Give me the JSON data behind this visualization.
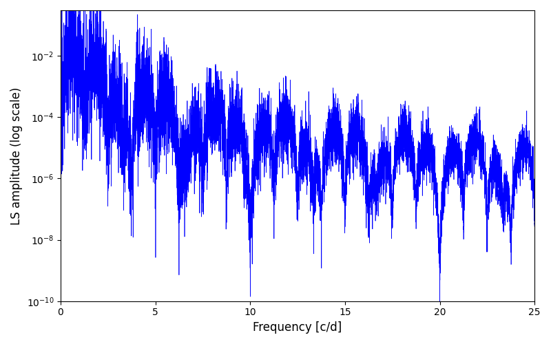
{
  "xlabel": "Frequency [c/d]",
  "ylabel": "LS amplitude (log scale)",
  "line_color": "#0000FF",
  "xlim": [
    0,
    25
  ],
  "ylim": [
    1e-10,
    0.3
  ],
  "background_color": "#ffffff",
  "line_width": 0.5,
  "figsize": [
    8.0,
    5.0
  ],
  "dpi": 100,
  "seed": 12345,
  "n_points": 8000,
  "freq_max": 25.0
}
